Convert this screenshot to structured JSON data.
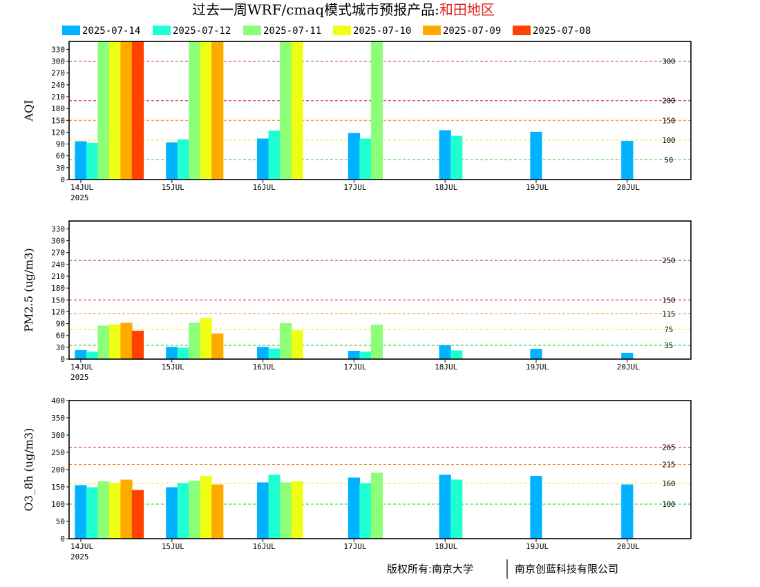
{
  "header": {
    "title_prefix": "过去一周WRF/cmaq模式城市预报产品:",
    "title_region": "和田地区"
  },
  "footer": {
    "copyright_left": "版权所有:南京大学",
    "copyright_right": "南京创蓝科技有限公司"
  },
  "colors": {
    "2025-07-14": "#00b2ff",
    "2025-07-12": "#1effd2",
    "2025-07-11": "#8cff78",
    "2025-07-10": "#eeff14",
    "2025-07-09": "#ffaa00",
    "2025-07-08": "#ff4200"
  },
  "chart_data": [
    {
      "type": "bar",
      "ylabel": "AQI",
      "ylim": [
        0,
        350
      ],
      "yticks": [
        0,
        30,
        60,
        90,
        120,
        150,
        180,
        210,
        240,
        270,
        300,
        330
      ],
      "x_ticks": [
        "14JUL",
        "15JUL",
        "16JUL",
        "17JUL",
        "18JUL",
        "19JUL",
        "20JUL"
      ],
      "x_year": "2025",
      "reference_lines": [
        {
          "value": 300,
          "label": "300",
          "color": "#b0285a"
        },
        {
          "value": 200,
          "label": "200",
          "color": "#d21e1e"
        },
        {
          "value": 150,
          "label": "150",
          "color": "#f07d14"
        },
        {
          "value": 100,
          "label": "100",
          "color": "#f0e614"
        },
        {
          "value": 50,
          "label": "50",
          "color": "#1ec81e"
        }
      ],
      "series": [
        {
          "name": "2025-07-14",
          "values": [
            97,
            94,
            104,
            118,
            125,
            121,
            98
          ]
        },
        {
          "name": "2025-07-12",
          "values": [
            93,
            102,
            124,
            104,
            111
          ]
        },
        {
          "name": "2025-07-11",
          "values": [
            350,
            350,
            350,
            350
          ]
        },
        {
          "name": "2025-07-10",
          "values": [
            350,
            350,
            350
          ]
        },
        {
          "name": "2025-07-09",
          "values": [
            350,
            350
          ]
        },
        {
          "name": "2025-07-08",
          "values": [
            350
          ]
        }
      ]
    },
    {
      "type": "bar",
      "ylabel": "PM2.5 (ug/m3)",
      "ylim": [
        0,
        350
      ],
      "yticks": [
        0,
        30,
        60,
        90,
        120,
        150,
        180,
        210,
        240,
        270,
        300,
        330
      ],
      "x_ticks": [
        "14JUL",
        "15JUL",
        "16JUL",
        "17JUL",
        "18JUL",
        "19JUL",
        "20JUL"
      ],
      "x_year": "2025",
      "reference_lines": [
        {
          "value": 250,
          "label": "250",
          "color": "#b0285a"
        },
        {
          "value": 150,
          "label": "150",
          "color": "#d21e1e"
        },
        {
          "value": 115,
          "label": "115",
          "color": "#f07d14"
        },
        {
          "value": 75,
          "label": "75",
          "color": "#f0e614"
        },
        {
          "value": 35,
          "label": "35",
          "color": "#1ec81e"
        }
      ],
      "series": [
        {
          "name": "2025-07-14",
          "values": [
            23,
            31,
            31,
            21,
            35,
            26,
            16
          ]
        },
        {
          "name": "2025-07-12",
          "values": [
            19,
            29,
            27,
            19,
            22
          ]
        },
        {
          "name": "2025-07-11",
          "values": [
            85,
            92,
            91,
            87
          ]
        },
        {
          "name": "2025-07-10",
          "values": [
            88,
            104,
            73
          ]
        },
        {
          "name": "2025-07-09",
          "values": [
            92,
            65
          ]
        },
        {
          "name": "2025-07-08",
          "values": [
            72
          ]
        }
      ]
    },
    {
      "type": "bar",
      "ylabel": "O3_8h (ug/m3)",
      "ylim": [
        0,
        400
      ],
      "yticks": [
        0,
        50,
        100,
        150,
        200,
        250,
        300,
        350,
        400
      ],
      "x_ticks": [
        "14JUL",
        "15JUL",
        "16JUL",
        "17JUL",
        "18JUL",
        "19JUL",
        "20JUL"
      ],
      "x_year": "2025",
      "reference_lines": [
        {
          "value": 265,
          "label": "265",
          "color": "#d21e1e"
        },
        {
          "value": 215,
          "label": "215",
          "color": "#f07d14"
        },
        {
          "value": 160,
          "label": "160",
          "color": "#f0e614"
        },
        {
          "value": 100,
          "label": "100",
          "color": "#1ec81e"
        }
      ],
      "series": [
        {
          "name": "2025-07-14",
          "values": [
            155,
            149,
            163,
            177,
            185,
            182,
            157
          ]
        },
        {
          "name": "2025-07-12",
          "values": [
            149,
            161,
            185,
            161,
            171
          ]
        },
        {
          "name": "2025-07-11",
          "values": [
            166,
            168,
            163,
            191
          ]
        },
        {
          "name": "2025-07-10",
          "values": [
            162,
            182,
            166
          ]
        },
        {
          "name": "2025-07-09",
          "values": [
            171,
            157
          ]
        },
        {
          "name": "2025-07-08",
          "values": [
            141
          ]
        }
      ]
    }
  ]
}
